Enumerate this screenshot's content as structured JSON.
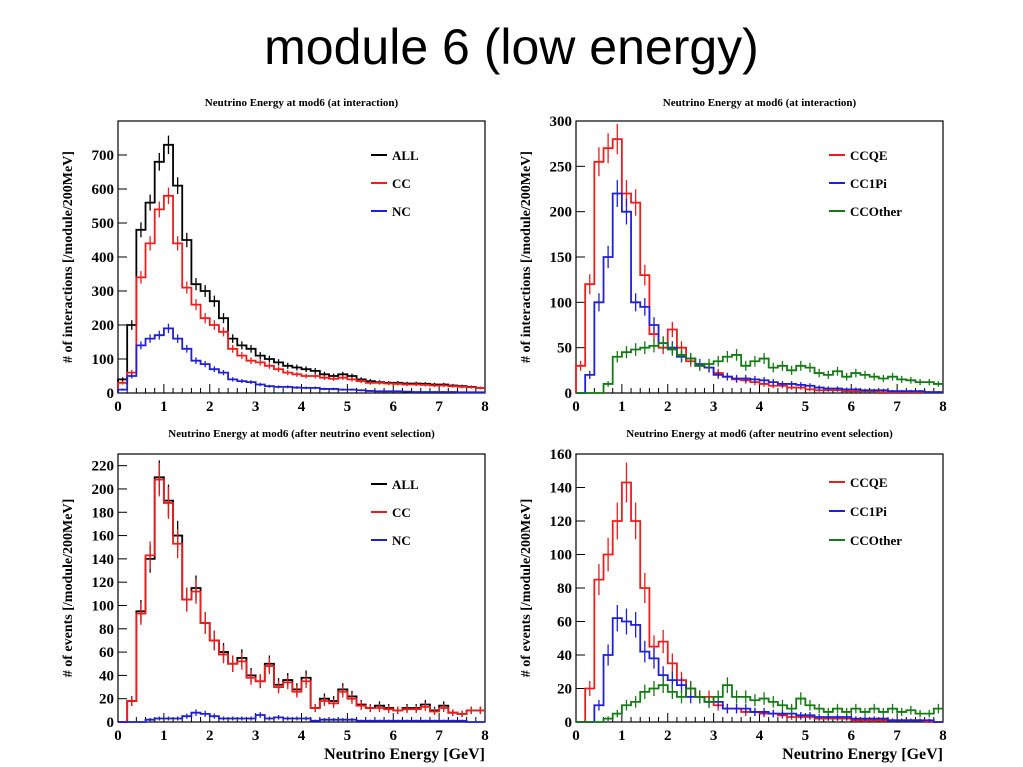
{
  "slide": {
    "title": "module 6 (low energy)"
  },
  "colors": {
    "ALL": "#000000",
    "CC": "#ee1c1c",
    "NC": "#1f1fd6",
    "CCQE": "#ee1c1c",
    "CC1Pi": "#1f1fd6",
    "CCOther": "#157a15"
  },
  "chart_data": [
    {
      "type": "line",
      "title": "Neutrino Energy at mod6 (at interaction)",
      "xlabel": "",
      "ylabel": "# of interactions [/module/200MeV]",
      "xlim": [
        0,
        8
      ],
      "ylim": [
        0,
        800
      ],
      "xticks": [
        0,
        1,
        2,
        3,
        4,
        5,
        6,
        7,
        8
      ],
      "yticks": [
        0,
        100,
        200,
        300,
        400,
        500,
        600,
        700
      ],
      "legend_position": "top-right",
      "x": [
        0.1,
        0.3,
        0.5,
        0.7,
        0.9,
        1.1,
        1.3,
        1.5,
        1.7,
        1.9,
        2.1,
        2.3,
        2.5,
        2.7,
        2.9,
        3.1,
        3.3,
        3.5,
        3.7,
        3.9,
        4.1,
        4.3,
        4.5,
        4.7,
        4.9,
        5.1,
        5.3,
        5.5,
        5.7,
        5.9,
        6.1,
        6.3,
        6.5,
        6.7,
        6.9,
        7.1,
        7.3,
        7.5,
        7.7,
        7.9
      ],
      "series": [
        {
          "name": "ALL",
          "values": [
            40,
            200,
            480,
            560,
            680,
            730,
            610,
            450,
            320,
            300,
            270,
            220,
            160,
            140,
            130,
            110,
            100,
            90,
            80,
            75,
            70,
            65,
            55,
            50,
            55,
            50,
            40,
            35,
            32,
            30,
            30,
            28,
            28,
            27,
            25,
            25,
            22,
            20,
            18,
            15
          ]
        },
        {
          "name": "CC",
          "values": [
            30,
            60,
            340,
            440,
            540,
            580,
            440,
            310,
            260,
            220,
            200,
            180,
            130,
            110,
            95,
            90,
            80,
            70,
            60,
            55,
            50,
            50,
            45,
            42,
            45,
            40,
            35,
            30,
            30,
            28,
            27,
            25,
            25,
            24,
            22,
            22,
            20,
            18,
            17,
            15
          ]
        },
        {
          "name": "NC",
          "values": [
            10,
            50,
            140,
            160,
            170,
            190,
            160,
            130,
            95,
            85,
            70,
            60,
            40,
            35,
            32,
            25,
            20,
            18,
            18,
            16,
            15,
            15,
            12,
            12,
            10,
            10,
            8,
            6,
            5,
            5,
            5,
            4,
            3,
            3,
            3,
            3,
            3,
            2,
            2,
            2
          ]
        }
      ]
    },
    {
      "type": "line",
      "title": "Neutrino Energy at mod6 (at interaction)",
      "xlabel": "",
      "ylabel": "# of interactions [/module/200MeV]",
      "xlim": [
        0,
        8
      ],
      "ylim": [
        0,
        300
      ],
      "xticks": [
        0,
        1,
        2,
        3,
        4,
        5,
        6,
        7,
        8
      ],
      "yticks": [
        0,
        50,
        100,
        150,
        200,
        250,
        300
      ],
      "legend_position": "top-right",
      "x": [
        0.1,
        0.3,
        0.5,
        0.7,
        0.9,
        1.1,
        1.3,
        1.5,
        1.7,
        1.9,
        2.1,
        2.3,
        2.5,
        2.7,
        2.9,
        3.1,
        3.3,
        3.5,
        3.7,
        3.9,
        4.1,
        4.3,
        4.5,
        4.7,
        4.9,
        5.1,
        5.3,
        5.5,
        5.7,
        5.9,
        6.1,
        6.3,
        6.5,
        6.7,
        6.9,
        7.1,
        7.3,
        7.5,
        7.7,
        7.9
      ],
      "series": [
        {
          "name": "CCQE",
          "values": [
            30,
            120,
            255,
            270,
            280,
            220,
            210,
            130,
            65,
            50,
            70,
            50,
            35,
            30,
            28,
            22,
            18,
            15,
            14,
            12,
            10,
            8,
            8,
            6,
            6,
            4,
            3,
            3,
            3,
            2,
            2,
            2,
            2,
            1,
            1,
            1,
            1,
            1,
            1,
            1
          ]
        },
        {
          "name": "CC1Pi",
          "values": [
            0,
            20,
            100,
            150,
            220,
            200,
            100,
            95,
            75,
            55,
            50,
            40,
            38,
            32,
            28,
            20,
            18,
            16,
            16,
            15,
            14,
            12,
            10,
            10,
            9,
            8,
            6,
            5,
            5,
            4,
            4,
            3,
            3,
            3,
            2,
            2,
            2,
            2,
            1,
            1
          ]
        },
        {
          "name": "CCOther",
          "values": [
            0,
            0,
            0,
            10,
            40,
            45,
            48,
            50,
            52,
            55,
            48,
            42,
            38,
            30,
            32,
            35,
            40,
            42,
            30,
            35,
            38,
            28,
            30,
            25,
            30,
            28,
            22,
            20,
            24,
            18,
            22,
            20,
            18,
            16,
            18,
            15,
            14,
            12,
            12,
            10
          ]
        }
      ]
    },
    {
      "type": "line",
      "title": "Neutrino Energy at mod6 (after neutrino event selection)",
      "xlabel": "Neutrino Energy [GeV]",
      "ylabel": "# of events [/module/200MeV]",
      "xlim": [
        0,
        8
      ],
      "ylim": [
        0,
        230
      ],
      "xticks": [
        0,
        1,
        2,
        3,
        4,
        5,
        6,
        7,
        8
      ],
      "yticks": [
        0,
        20,
        40,
        60,
        80,
        100,
        120,
        140,
        160,
        180,
        200,
        220
      ],
      "legend_position": "top-right",
      "x": [
        0.1,
        0.3,
        0.5,
        0.7,
        0.9,
        1.1,
        1.3,
        1.5,
        1.7,
        1.9,
        2.1,
        2.3,
        2.5,
        2.7,
        2.9,
        3.1,
        3.3,
        3.5,
        3.7,
        3.9,
        4.1,
        4.3,
        4.5,
        4.7,
        4.9,
        5.1,
        5.3,
        5.5,
        5.7,
        5.9,
        6.1,
        6.3,
        6.5,
        6.7,
        6.9,
        7.1,
        7.3,
        7.5,
        7.7,
        7.9
      ],
      "series": [
        {
          "name": "ALL",
          "values": [
            0,
            18,
            95,
            140,
            210,
            190,
            160,
            105,
            115,
            85,
            70,
            60,
            50,
            55,
            40,
            35,
            50,
            32,
            36,
            28,
            38,
            12,
            20,
            18,
            28,
            22,
            15,
            12,
            14,
            12,
            10,
            12,
            12,
            15,
            10,
            14,
            8,
            7,
            10,
            10
          ]
        },
        {
          "name": "CC",
          "values": [
            0,
            18,
            93,
            143,
            208,
            188,
            153,
            105,
            112,
            85,
            70,
            58,
            50,
            52,
            38,
            35,
            48,
            30,
            34,
            26,
            35,
            12,
            18,
            16,
            26,
            20,
            14,
            12,
            12,
            11,
            10,
            11,
            11,
            13,
            9,
            12,
            8,
            7,
            10,
            10
          ]
        },
        {
          "name": "NC",
          "values": [
            0,
            0,
            0,
            2,
            3,
            3,
            3,
            5,
            8,
            7,
            5,
            3,
            3,
            3,
            3,
            6,
            3,
            4,
            3,
            3,
            3,
            1,
            2,
            2,
            2,
            2,
            1,
            1,
            1,
            1,
            1,
            1,
            1,
            1,
            1,
            1,
            1,
            1,
            0,
            0
          ]
        }
      ]
    },
    {
      "type": "line",
      "title": "Neutrino Energy at mod6 (after neutrino event selection)",
      "xlabel": "Neutrino Energy [GeV]",
      "ylabel": "# of events [/module/200MeV]",
      "xlim": [
        0,
        8
      ],
      "ylim": [
        0,
        160
      ],
      "xticks": [
        0,
        1,
        2,
        3,
        4,
        5,
        6,
        7,
        8
      ],
      "yticks": [
        0,
        20,
        40,
        60,
        80,
        100,
        120,
        140,
        160
      ],
      "legend_position": "top-right",
      "x": [
        0.1,
        0.3,
        0.5,
        0.7,
        0.9,
        1.1,
        1.3,
        1.5,
        1.7,
        1.9,
        2.1,
        2.3,
        2.5,
        2.7,
        2.9,
        3.1,
        3.3,
        3.5,
        3.7,
        3.9,
        4.1,
        4.3,
        4.5,
        4.7,
        4.9,
        5.1,
        5.3,
        5.5,
        5.7,
        5.9,
        6.1,
        6.3,
        6.5,
        6.7,
        6.9,
        7.1,
        7.3,
        7.5,
        7.7,
        7.9
      ],
      "series": [
        {
          "name": "CCQE",
          "values": [
            0,
            20,
            85,
            100,
            120,
            143,
            120,
            80,
            45,
            48,
            35,
            25,
            20,
            15,
            15,
            10,
            8,
            8,
            6,
            6,
            5,
            5,
            4,
            3,
            3,
            3,
            2,
            2,
            2,
            2,
            1,
            1,
            1,
            1,
            1,
            1,
            1,
            1,
            0,
            0
          ]
        },
        {
          "name": "CC1Pi",
          "values": [
            0,
            0,
            10,
            40,
            62,
            60,
            58,
            42,
            38,
            28,
            25,
            22,
            15,
            15,
            12,
            12,
            8,
            8,
            8,
            6,
            6,
            5,
            5,
            5,
            4,
            4,
            3,
            3,
            3,
            3,
            2,
            2,
            2,
            2,
            1,
            1,
            1,
            1,
            1,
            0
          ]
        },
        {
          "name": "CCOther",
          "values": [
            0,
            0,
            0,
            2,
            5,
            10,
            12,
            18,
            20,
            22,
            18,
            15,
            20,
            15,
            12,
            15,
            22,
            15,
            15,
            13,
            14,
            12,
            10,
            8,
            14,
            10,
            8,
            6,
            8,
            6,
            8,
            6,
            8,
            6,
            8,
            6,
            7,
            5,
            5,
            8
          ]
        }
      ]
    }
  ]
}
